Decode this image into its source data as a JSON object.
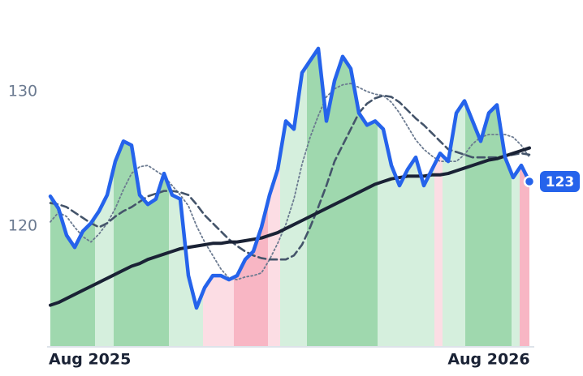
{
  "chart_data": {
    "type": "line",
    "x": [
      0,
      1,
      2,
      3,
      4,
      5,
      6,
      7,
      8,
      9,
      10,
      11,
      12,
      13,
      14,
      15,
      16,
      17,
      18,
      19,
      20,
      21,
      22,
      23,
      24,
      25,
      26,
      27,
      28,
      29,
      30,
      31,
      32,
      33,
      34,
      35,
      36,
      37,
      38,
      39,
      40,
      41,
      42,
      43,
      44,
      45,
      46,
      47,
      48,
      49,
      50,
      51,
      52,
      53,
      54,
      55,
      56,
      57,
      58,
      59
    ],
    "xlim": [
      0,
      59
    ],
    "xticks": [
      {
        "value": 0,
        "label": "Aug 2025"
      },
      {
        "value": 54,
        "label": "Aug 2026"
      }
    ],
    "ylim": [
      111,
      135
    ],
    "yticks": [
      120,
      130
    ],
    "regions": [
      {
        "x0": 0,
        "x1": 5.5,
        "color": "#9fd8ae"
      },
      {
        "x0": 5.5,
        "x1": 7.8,
        "color": "#d5efdd"
      },
      {
        "x0": 7.8,
        "x1": 14.6,
        "color": "#9fd8ae"
      },
      {
        "x0": 14.6,
        "x1": 18.8,
        "color": "#d5efdd"
      },
      {
        "x0": 18.8,
        "x1": 22.6,
        "color": "#fcdde4"
      },
      {
        "x0": 22.6,
        "x1": 26.8,
        "color": "#f8b6c4"
      },
      {
        "x0": 26.8,
        "x1": 28.3,
        "color": "#fcdde4"
      },
      {
        "x0": 28.3,
        "x1": 31.6,
        "color": "#d5efdd"
      },
      {
        "x0": 31.6,
        "x1": 40.3,
        "color": "#9fd8ae"
      },
      {
        "x0": 40.3,
        "x1": 47.3,
        "color": "#d5efdd"
      },
      {
        "x0": 47.3,
        "x1": 48.3,
        "color": "#fcdde4"
      },
      {
        "x0": 48.3,
        "x1": 51.1,
        "color": "#d5efdd"
      },
      {
        "x0": 51.1,
        "x1": 56.8,
        "color": "#9fd8ae"
      },
      {
        "x0": 56.8,
        "x1": 57.8,
        "color": "#d5efdd"
      },
      {
        "x0": 57.8,
        "x1": 59,
        "color": "#f8b6c4"
      }
    ],
    "series": [
      {
        "color": "#6b7a90",
        "style": "dotted",
        "width": 1.8,
        "values": [
          120.3,
          121.0,
          120.7,
          119.9,
          119.2,
          118.8,
          119.4,
          120.2,
          121.3,
          122.7,
          123.9,
          124.4,
          124.5,
          124.1,
          123.7,
          123.0,
          122.3,
          121.5,
          120.0,
          118.8,
          117.8,
          116.8,
          116.1,
          116.0,
          116.2,
          116.3,
          116.5,
          117.5,
          118.7,
          120.1,
          122.0,
          124.6,
          126.6,
          128.2,
          129.6,
          130.2,
          130.5,
          130.6,
          130.3,
          130.0,
          129.8,
          129.7,
          129.2,
          128.4,
          127.4,
          126.4,
          125.7,
          125.2,
          124.8,
          124.8,
          124.8,
          125.3,
          126.1,
          126.6,
          126.8,
          126.8,
          126.8,
          126.6,
          126.0,
          125.1
        ]
      },
      {
        "color": "#44546a",
        "style": "dashed",
        "width": 2.6,
        "values": [
          121.7,
          121.6,
          121.4,
          121.0,
          120.6,
          120.2,
          119.9,
          120.2,
          120.7,
          121.1,
          121.4,
          121.8,
          122.2,
          122.4,
          122.6,
          122.6,
          122.5,
          122.3,
          121.6,
          120.8,
          120.2,
          119.6,
          119.0,
          118.5,
          118.1,
          117.8,
          117.6,
          117.5,
          117.5,
          117.5,
          117.8,
          118.6,
          119.9,
          121.4,
          123.0,
          124.8,
          126.0,
          127.2,
          128.4,
          129.1,
          129.5,
          129.7,
          129.6,
          129.2,
          128.6,
          128.0,
          127.5,
          126.9,
          126.3,
          125.7,
          125.5,
          125.3,
          125.1,
          125.1,
          125.1,
          125.1,
          125.2,
          125.3,
          125.4,
          125.3
        ]
      },
      {
        "color": "#1a2235",
        "style": "solid",
        "width": 4,
        "values": [
          114.1,
          114.3,
          114.6,
          114.9,
          115.2,
          115.5,
          115.8,
          116.1,
          116.4,
          116.7,
          117.0,
          117.2,
          117.5,
          117.7,
          117.9,
          118.1,
          118.3,
          118.4,
          118.5,
          118.6,
          118.7,
          118.7,
          118.8,
          118.8,
          118.9,
          119.0,
          119.1,
          119.3,
          119.5,
          119.8,
          120.1,
          120.4,
          120.7,
          121.0,
          121.3,
          121.6,
          121.9,
          122.2,
          122.5,
          122.8,
          123.1,
          123.3,
          123.5,
          123.6,
          123.7,
          123.7,
          123.7,
          123.8,
          123.8,
          123.9,
          124.1,
          124.3,
          124.5,
          124.7,
          124.9,
          125.0,
          125.2,
          125.4,
          125.6,
          125.8
        ]
      },
      {
        "color": "#2563eb",
        "style": "solid",
        "width": 4.5,
        "values": [
          122.2,
          121.3,
          119.3,
          118.4,
          119.6,
          120.2,
          121.1,
          122.3,
          124.8,
          126.3,
          126.0,
          122.3,
          121.6,
          122.0,
          123.9,
          122.3,
          122.0,
          116.3,
          113.9,
          115.4,
          116.3,
          116.3,
          116.0,
          116.3,
          117.5,
          118.1,
          119.9,
          122.3,
          124.2,
          127.8,
          127.2,
          131.4,
          132.3,
          133.2,
          127.8,
          130.8,
          132.6,
          131.7,
          128.4,
          127.5,
          127.8,
          127.2,
          124.5,
          123.0,
          124.2,
          125.1,
          123.0,
          124.2,
          125.4,
          124.8,
          128.4,
          129.3,
          127.8,
          126.3,
          128.4,
          129.0,
          125.1,
          123.6,
          124.5,
          123.3
        ],
        "value_labels": [
          null,
          null,
          null,
          null,
          null,
          null,
          null,
          null,
          null,
          null,
          null,
          null,
          null,
          null,
          null,
          null,
          null,
          null,
          null,
          null,
          null,
          null,
          null,
          null,
          null,
          null,
          null,
          null,
          null,
          null,
          null,
          null,
          null,
          null,
          null,
          null,
          null,
          null,
          null,
          null,
          null,
          null,
          null,
          null,
          null,
          null,
          null,
          null,
          null,
          null,
          null,
          null,
          null,
          null,
          null,
          null,
          null,
          null,
          null,
          "123"
        ]
      }
    ]
  }
}
